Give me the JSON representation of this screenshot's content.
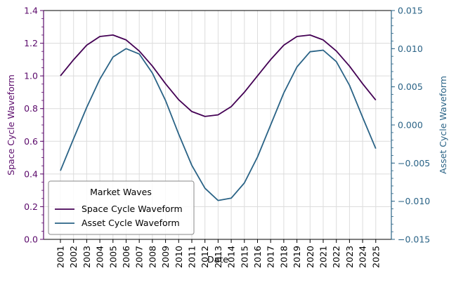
{
  "chart_data": {
    "type": "line",
    "x": [
      "2001",
      "2002",
      "2003",
      "2004",
      "2005",
      "2006",
      "2007",
      "2008",
      "2009",
      "2010",
      "2011",
      "2012",
      "2013",
      "2014",
      "2015",
      "2016",
      "2017",
      "2018",
      "2019",
      "2020",
      "2021",
      "2022",
      "2023",
      "2024",
      "2025"
    ],
    "xlabel": "Date",
    "y_left": {
      "label": "Space Cycle Waveform",
      "ylim": [
        0.0,
        1.4
      ],
      "ticks": [
        "0.0",
        "0.2",
        "0.4",
        "0.6",
        "0.8",
        "1.0",
        "1.2",
        "1.4"
      ],
      "color": "#5b0a6b"
    },
    "y_right": {
      "label": "Asset Cycle Waveform",
      "ylim": [
        -0.015,
        0.015
      ],
      "ticks": [
        "−0.015",
        "−0.010",
        "−0.005",
        "0.000",
        "0.005",
        "0.010",
        "0.015"
      ],
      "color": "#2a6386"
    },
    "series": [
      {
        "name": "Space Cycle Waveform",
        "axis": "left",
        "color": "#440154",
        "values": [
          1.0,
          1.099,
          1.188,
          1.241,
          1.25,
          1.22,
          1.152,
          1.06,
          0.952,
          0.854,
          0.782,
          0.752,
          0.762,
          0.812,
          0.9,
          1.0,
          1.1,
          1.188,
          1.241,
          1.25,
          1.22,
          1.152,
          1.06,
          0.952,
          0.852
        ]
      },
      {
        "name": "Asset Cycle Waveform",
        "axis": "right",
        "color": "#2a6386",
        "values": [
          -0.006,
          -0.0018,
          0.0023,
          0.006,
          0.0089,
          0.01,
          0.0093,
          0.0068,
          0.0032,
          -0.0012,
          -0.0053,
          -0.0083,
          -0.0099,
          -0.0096,
          -0.0076,
          -0.0042,
          0.0,
          0.0042,
          0.0076,
          0.0096,
          0.0098,
          0.0083,
          0.0052,
          0.001,
          -0.0031
        ]
      }
    ],
    "grid": true,
    "legend": {
      "title": "Market Waves",
      "position": "lower-left"
    }
  }
}
